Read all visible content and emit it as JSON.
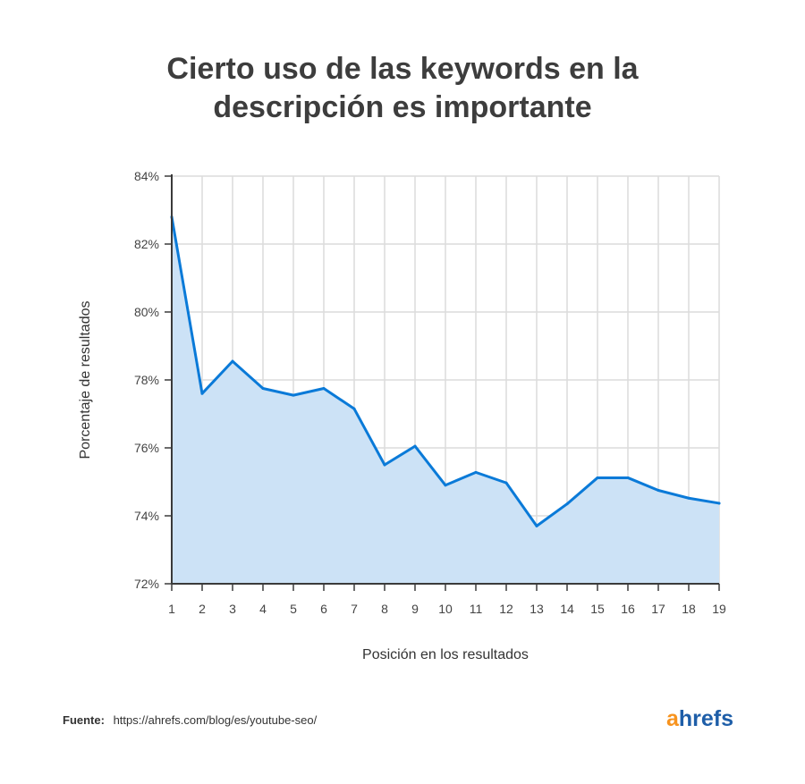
{
  "title": {
    "line1": "Cierto uso de las keywords en la",
    "line2": "descripción es importante"
  },
  "chart_data": {
    "type": "area",
    "x": [
      1,
      2,
      3,
      4,
      5,
      6,
      7,
      8,
      9,
      10,
      11,
      12,
      13,
      14,
      15,
      16,
      17,
      18,
      19
    ],
    "series": [
      {
        "values": [
          82.8,
          77.6,
          78.55,
          77.75,
          77.55,
          77.75,
          77.15,
          75.5,
          76.05,
          74.9,
          75.28,
          74.97,
          73.7,
          74.35,
          75.12,
          75.12,
          74.75,
          74.52,
          74.37
        ]
      }
    ],
    "xlabel": "Posición en los resultados",
    "ylabel": "Porcentaje de resultados",
    "ylim": [
      72,
      84
    ],
    "yticks": [
      72,
      74,
      76,
      78,
      80,
      82,
      84
    ],
    "ytick_labels": [
      "72%",
      "74%",
      "76%",
      "78%",
      "80%",
      "82%",
      "84%"
    ],
    "grid": true,
    "line_color": "#0a7ad8",
    "fill_color": "#cce2f6"
  },
  "footer": {
    "source_label": "Fuente:",
    "source_url": "https://ahrefs.com/blog/es/youtube-seo/"
  },
  "logo": {
    "a": "a",
    "rest": "hrefs"
  }
}
